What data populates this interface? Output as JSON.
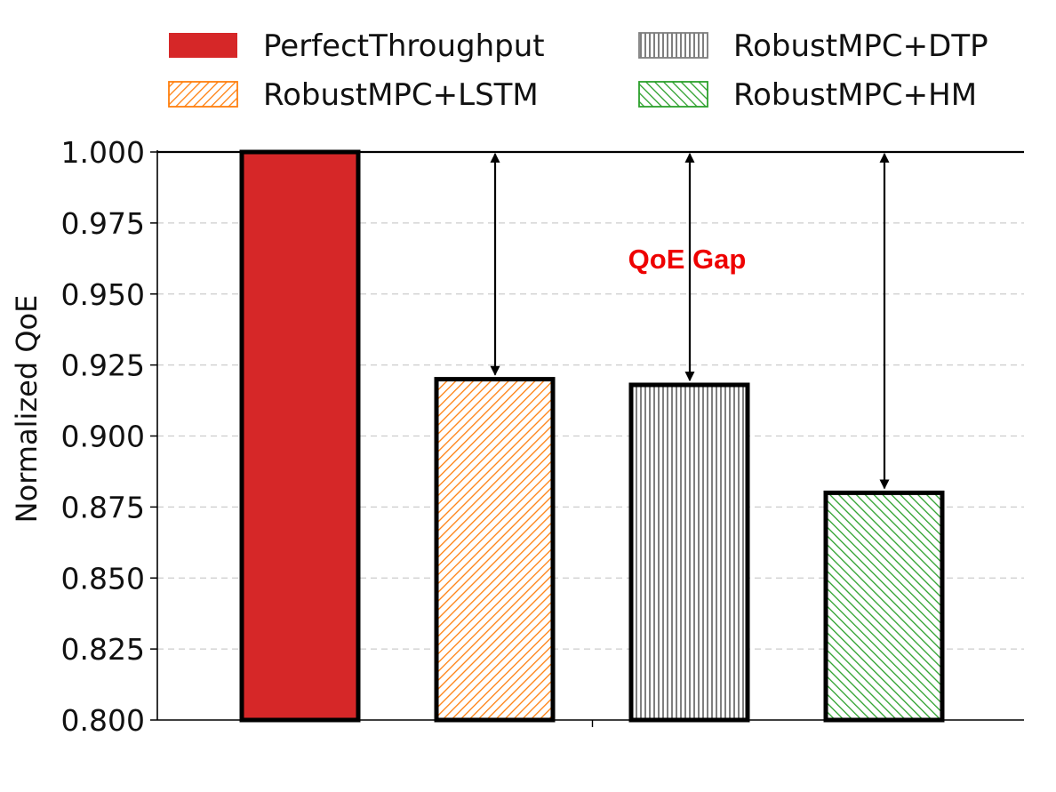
{
  "chart_data": {
    "type": "bar",
    "title": "",
    "xlabel": "",
    "ylabel": "Normalized QoE",
    "ylim": [
      0.8,
      1.0
    ],
    "yticks": [
      0.8,
      0.825,
      0.85,
      0.875,
      0.9,
      0.925,
      0.95,
      0.975,
      1.0
    ],
    "ytick_labels": [
      "0.800",
      "0.825",
      "0.850",
      "0.875",
      "0.900",
      "0.925",
      "0.950",
      "0.975",
      "1.000"
    ],
    "grid": "horizontal dashed",
    "reference_line": 1.0,
    "legend_position": "top",
    "series": [
      {
        "name": "PerfectThroughput",
        "value": 1.0,
        "color": "#d62728",
        "pattern": "solid"
      },
      {
        "name": "RobustMPC+LSTM",
        "value": 0.92,
        "color": "#ff7f0e",
        "pattern": "diagonal-hatch"
      },
      {
        "name": "RobustMPC+DTP",
        "value": 0.918,
        "color": "#7f7f7f",
        "pattern": "vertical-hatch"
      },
      {
        "name": "RobustMPC+HM",
        "value": 0.88,
        "color": "#2ca02c",
        "pattern": "backslash-hatch"
      }
    ],
    "annotation": {
      "text": "QoE Gap",
      "color": "#ee0000"
    }
  }
}
